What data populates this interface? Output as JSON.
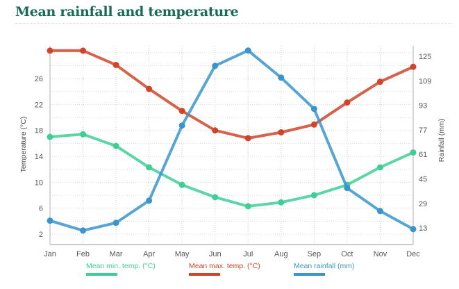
{
  "header": {
    "title": "Mean rainfall and temperature"
  },
  "chart_data": {
    "type": "line",
    "title": "Mean rainfall and temperature",
    "categories": [
      "Jan",
      "Feb",
      "Mar",
      "Apr",
      "May",
      "Jun",
      "Jul",
      "Aug",
      "Sep",
      "Oct",
      "Nov",
      "Dec"
    ],
    "y_left": {
      "label": "Temperature (°C)",
      "ticks": [
        2,
        6,
        10,
        14,
        18,
        22,
        26
      ],
      "range": [
        0,
        32
      ]
    },
    "y_right": {
      "label": "Rainfall (mm)",
      "ticks": [
        13,
        29,
        45,
        61,
        77,
        93,
        109,
        125
      ],
      "range": [
        0,
        135
      ]
    },
    "grid": true,
    "legend_position": "bottom",
    "series": [
      {
        "name": "Mean min. temp. (°C)",
        "axis": "left",
        "color": "#3fcf96",
        "values": [
          17.0,
          17.4,
          15.6,
          12.3,
          9.6,
          7.7,
          6.3,
          6.9,
          8.0,
          9.6,
          12.3,
          14.6
        ]
      },
      {
        "name": "Mean max. temp. (°C)",
        "axis": "left",
        "color": "#d0452a",
        "values": [
          30.3,
          30.3,
          28.1,
          24.4,
          21.0,
          18.0,
          16.8,
          17.7,
          18.9,
          22.3,
          25.5,
          27.8
        ]
      },
      {
        "name": "Mean rainfall (mm)",
        "axis": "right",
        "color": "#3a95cc",
        "values": [
          17.7,
          11.3,
          16.3,
          30.8,
          79.8,
          118.8,
          128.8,
          111.1,
          90.7,
          39.0,
          24.0,
          12.2
        ]
      }
    ]
  }
}
